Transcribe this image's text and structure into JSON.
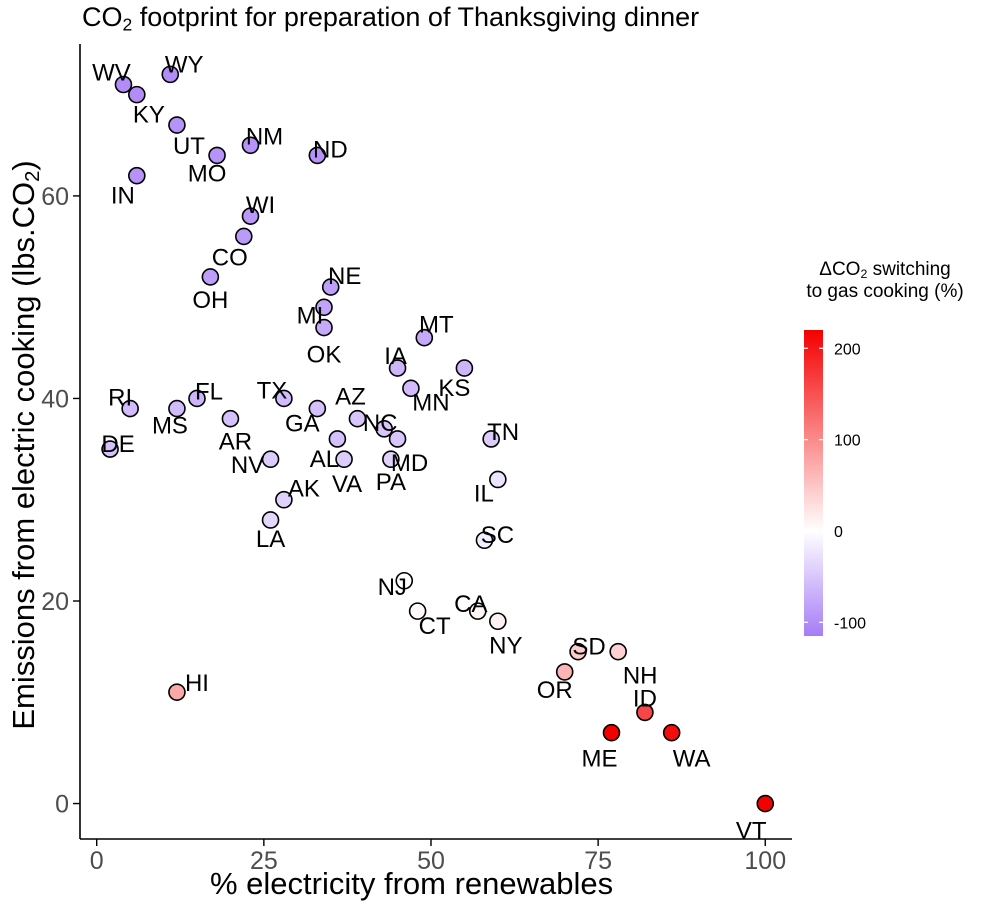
{
  "chart_data": {
    "type": "scatter",
    "title": {
      "prefix": "CO",
      "sub": "2",
      "suffix": " footprint for preparation of Thanksgiving dinner"
    },
    "xlabel": "% electricity from renewables",
    "ylabel": {
      "prefix": "Emissions from electric cooking (lbs.CO",
      "sub": "2",
      "suffix": ")"
    },
    "xlim": [
      -2.5,
      104
    ],
    "ylim": [
      -3.5,
      75
    ],
    "x_ticks": [
      0,
      25,
      50,
      75,
      100
    ],
    "y_ticks": [
      0,
      20,
      40,
      60
    ],
    "grid": false,
    "legend": {
      "position": "right",
      "title_line1": {
        "prefix": "ΔCO",
        "sub": "2",
        "suffix": " switching"
      },
      "title_line2": "to gas cooking (%)",
      "ticks": [
        200,
        100,
        0,
        -100
      ],
      "range": [
        -115,
        220
      ],
      "colors": {
        "low": "#a67cf6",
        "mid": "#ffffff",
        "high": "#f40000"
      }
    },
    "points": [
      {
        "state": "WV",
        "x": 4,
        "y": 71,
        "delta": -100
      },
      {
        "state": "WY",
        "x": 11,
        "y": 72,
        "delta": -100
      },
      {
        "state": "KY",
        "x": 6,
        "y": 70,
        "delta": -100
      },
      {
        "state": "UT",
        "x": 12,
        "y": 67,
        "delta": -95
      },
      {
        "state": "MO",
        "x": 18,
        "y": 64,
        "delta": -95
      },
      {
        "state": "NM",
        "x": 23,
        "y": 65,
        "delta": -95
      },
      {
        "state": "ND",
        "x": 33,
        "y": 64,
        "delta": -95
      },
      {
        "state": "IN",
        "x": 6,
        "y": 62,
        "delta": -95
      },
      {
        "state": "WI",
        "x": 23,
        "y": 58,
        "delta": -90
      },
      {
        "state": "CO",
        "x": 22,
        "y": 56,
        "delta": -88
      },
      {
        "state": "OH",
        "x": 17,
        "y": 52,
        "delta": -85
      },
      {
        "state": "NE",
        "x": 35,
        "y": 51,
        "delta": -85
      },
      {
        "state": "MI",
        "x": 34,
        "y": 49,
        "delta": -80
      },
      {
        "state": "OK",
        "x": 34,
        "y": 47,
        "delta": -75
      },
      {
        "state": "MT",
        "x": 49,
        "y": 46,
        "delta": -75
      },
      {
        "state": "IA",
        "x": 45,
        "y": 43,
        "delta": -65
      },
      {
        "state": "KS",
        "x": 55,
        "y": 43,
        "delta": -65
      },
      {
        "state": "MN",
        "x": 47,
        "y": 41,
        "delta": -60
      },
      {
        "state": "FL",
        "x": 15,
        "y": 40,
        "delta": -65
      },
      {
        "state": "TX",
        "x": 28,
        "y": 40,
        "delta": -60
      },
      {
        "state": "RI",
        "x": 5,
        "y": 39,
        "delta": -60
      },
      {
        "state": "MS",
        "x": 12,
        "y": 39,
        "delta": -60
      },
      {
        "state": "GA",
        "x": 33,
        "y": 39,
        "delta": -55
      },
      {
        "state": "AZ",
        "x": 39,
        "y": 38,
        "delta": -50
      },
      {
        "state": "AR",
        "x": 20,
        "y": 38,
        "delta": -55
      },
      {
        "state": "NC",
        "x": 43,
        "y": 37,
        "delta": -50
      },
      {
        "state": "TN",
        "x": 59,
        "y": 36,
        "delta": -45
      },
      {
        "state": "AL",
        "x": 36,
        "y": 36,
        "delta": -55
      },
      {
        "state": "MD",
        "x": 45,
        "y": 36,
        "delta": -50
      },
      {
        "state": "DE",
        "x": 2,
        "y": 35,
        "delta": -55
      },
      {
        "state": "NV",
        "x": 26,
        "y": 34,
        "delta": -45
      },
      {
        "state": "VA",
        "x": 37,
        "y": 34,
        "delta": -45
      },
      {
        "state": "PA",
        "x": 44,
        "y": 34,
        "delta": -40
      },
      {
        "state": "IL",
        "x": 60,
        "y": 32,
        "delta": -25
      },
      {
        "state": "AK",
        "x": 28,
        "y": 30,
        "delta": -40
      },
      {
        "state": "LA",
        "x": 26,
        "y": 28,
        "delta": -35
      },
      {
        "state": "SC",
        "x": 58,
        "y": 26,
        "delta": -15
      },
      {
        "state": "NJ",
        "x": 46,
        "y": 22,
        "delta": 0
      },
      {
        "state": "CT",
        "x": 48,
        "y": 19,
        "delta": 5
      },
      {
        "state": "CA",
        "x": 57,
        "y": 19,
        "delta": 8
      },
      {
        "state": "NY",
        "x": 60,
        "y": 18,
        "delta": 12
      },
      {
        "state": "SD",
        "x": 72,
        "y": 15,
        "delta": 45
      },
      {
        "state": "NH",
        "x": 78,
        "y": 15,
        "delta": 40
      },
      {
        "state": "OR",
        "x": 70,
        "y": 13,
        "delta": 65
      },
      {
        "state": "HI",
        "x": 12,
        "y": 11,
        "delta": 75
      },
      {
        "state": "ID",
        "x": 82,
        "y": 9,
        "delta": 160
      },
      {
        "state": "ME",
        "x": 77,
        "y": 7,
        "delta": 220
      },
      {
        "state": "WA",
        "x": 86,
        "y": 7,
        "delta": 210
      },
      {
        "state": "VT",
        "x": 100,
        "y": 0,
        "delta": 220
      }
    ]
  }
}
